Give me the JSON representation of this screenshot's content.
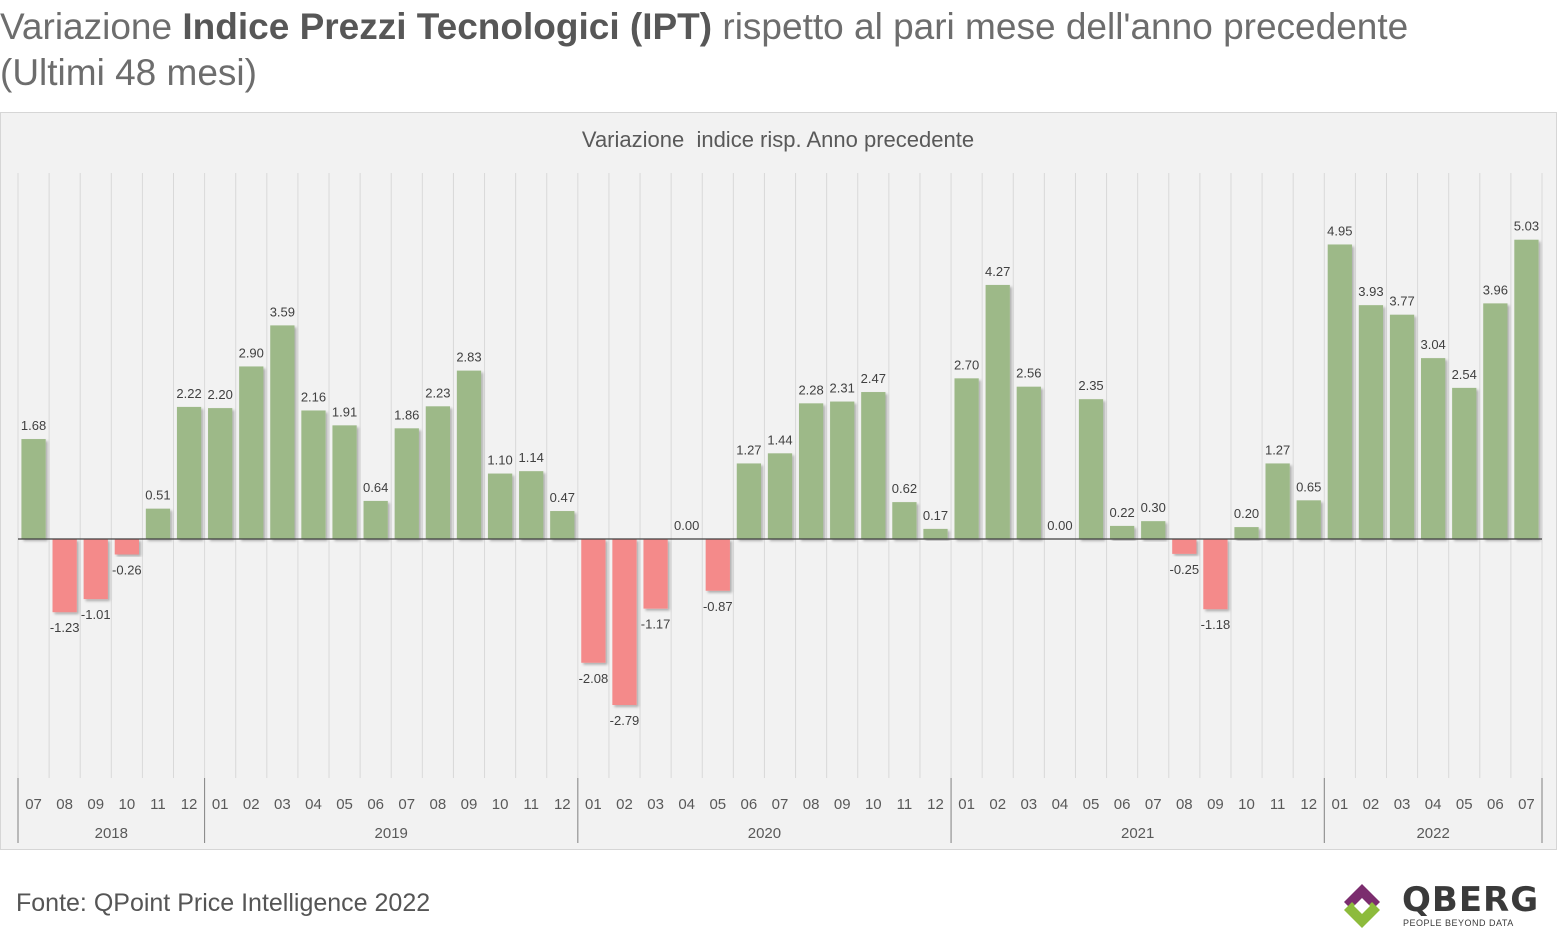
{
  "heading": {
    "prefix": "Variazione ",
    "bold": "Indice Prezzi Tecnologici (IPT)",
    "suffix": " rispetto al pari mese dell'anno precedente",
    "line2": "(Ultimi 48 mesi)"
  },
  "source": "Fonte: QPoint Price Intelligence 2022",
  "logo": {
    "name": "QBERG",
    "tagline": "PEOPLE BEYOND DATA"
  },
  "colors": {
    "positive": "#9db988",
    "negative": "#f48a8a",
    "background": "#f2f2f2",
    "gridline": "#d9d9d9",
    "text": "#595959",
    "logo_purple": "#7b2d6e",
    "logo_green": "#8dbb3c"
  },
  "chart_data": {
    "type": "bar",
    "title": "Variazione  indice risp. Anno precedente",
    "xlabel": "",
    "ylabel": "",
    "ylim": [
      -3.5,
      5.5
    ],
    "grid": true,
    "categories": [
      "07",
      "08",
      "09",
      "10",
      "11",
      "12",
      "01",
      "02",
      "03",
      "04",
      "05",
      "06",
      "07",
      "08",
      "09",
      "10",
      "11",
      "12",
      "01",
      "02",
      "03",
      "04",
      "05",
      "06",
      "07",
      "08",
      "09",
      "10",
      "11",
      "12",
      "01",
      "02",
      "03",
      "04",
      "05",
      "06",
      "07",
      "08",
      "09",
      "10",
      "11",
      "12",
      "01",
      "02",
      "03",
      "04",
      "05",
      "06",
      "07"
    ],
    "years": [
      {
        "label": "2018",
        "count": 6
      },
      {
        "label": "2019",
        "count": 12
      },
      {
        "label": "2020",
        "count": 12
      },
      {
        "label": "2021",
        "count": 12
      },
      {
        "label": "2022",
        "count": 7
      }
    ],
    "values": [
      1.68,
      -1.23,
      -1.01,
      -0.26,
      0.51,
      2.22,
      2.2,
      2.9,
      3.59,
      2.16,
      1.91,
      0.64,
      1.86,
      2.23,
      2.83,
      1.1,
      1.14,
      0.47,
      -2.08,
      -2.79,
      -1.17,
      0.0,
      -0.87,
      1.27,
      1.44,
      2.28,
      2.31,
      2.47,
      0.62,
      0.17,
      2.7,
      4.27,
      2.56,
      0.0,
      2.35,
      0.22,
      0.3,
      -0.25,
      -1.18,
      0.2,
      1.27,
      0.65,
      4.95,
      3.93,
      3.77,
      3.04,
      2.54,
      3.96,
      5.03
    ],
    "labels": [
      "1.68",
      "-1.23",
      "-1.01",
      "-0.26",
      "0.51",
      "2.22",
      "2.20",
      "2.90",
      "3.59",
      "2.16",
      "1.91",
      "0.64",
      "1.86",
      "2.23",
      "2.83",
      "1.10",
      "1.14",
      "0.47",
      "-2.08",
      "-2.79",
      "-1.17",
      "0.00",
      "-0.87",
      "1.27",
      "1.44",
      "2.28",
      "2.31",
      "2.47",
      "0.62",
      "0.17",
      "2.70",
      "4.27",
      "2.56",
      "0.00",
      "2.35",
      "0.22",
      "0.30",
      "-0.25",
      "-1.18",
      "0.20",
      "1.27",
      "0.65",
      "4.95",
      "3.93",
      "3.77",
      "3.04",
      "2.54",
      "3.96",
      "5.03"
    ]
  }
}
